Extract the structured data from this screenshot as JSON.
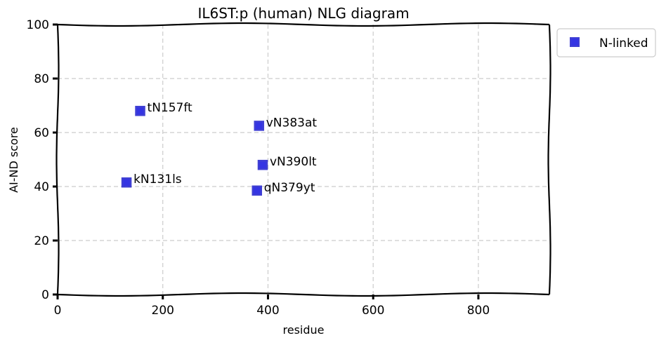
{
  "chart_data": {
    "type": "scatter",
    "title": "IL6ST:p (human) NLG diagram",
    "xlabel": "residue",
    "ylabel": "AI-ND score",
    "xlim": [
      0,
      935
    ],
    "ylim": [
      0,
      100
    ],
    "xticks": [
      0,
      200,
      400,
      600,
      800
    ],
    "yticks": [
      0,
      20,
      40,
      60,
      80,
      100
    ],
    "grid": true,
    "legend_position": "outside-top-right",
    "series": [
      {
        "name": "N-linked",
        "color": "#1f1fe0",
        "marker": "square",
        "points": [
          {
            "x": 131,
            "y": 41.5,
            "label": "kN131ls"
          },
          {
            "x": 157,
            "y": 68,
            "label": "tN157ft"
          },
          {
            "x": 379,
            "y": 38.5,
            "label": "qN379yt"
          },
          {
            "x": 383,
            "y": 62.5,
            "label": "vN383at"
          },
          {
            "x": 390,
            "y": 48,
            "label": "vN390lt"
          }
        ]
      }
    ]
  }
}
